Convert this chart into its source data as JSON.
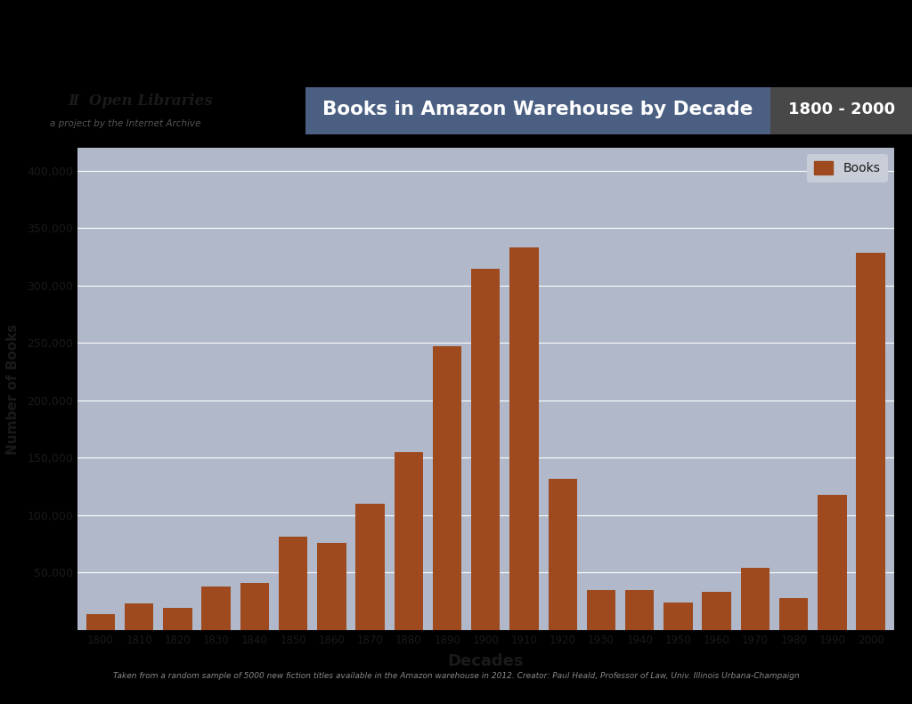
{
  "decades": [
    1800,
    1810,
    1820,
    1830,
    1840,
    1850,
    1860,
    1870,
    1880,
    1890,
    1900,
    1910,
    1920,
    1930,
    1940,
    1950,
    1960,
    1970,
    1980,
    1990,
    2000
  ],
  "values": [
    14000,
    23000,
    19000,
    38000,
    41000,
    81000,
    76000,
    110000,
    155000,
    247000,
    315000,
    333000,
    132000,
    35000,
    35000,
    24000,
    33000,
    54000,
    28000,
    118000,
    329000
  ],
  "bar_color": "#9E4A1E",
  "chart_bg_color": "#B0B8CA",
  "fig_bg_color": "#000000",
  "title_text": "Books in Amazon Warehouse by Decade",
  "title_bg_color": "#4A5F82",
  "title_text_color": "#FFFFFF",
  "date_range_text": "1800 - 2000",
  "date_range_bg_color": "#484848",
  "date_range_text_color": "#FFFFFF",
  "ylabel": "Number of Books",
  "xlabel": "Decades",
  "ylim": [
    0,
    420000
  ],
  "yticks": [
    0,
    50000,
    100000,
    150000,
    200000,
    250000,
    300000,
    350000,
    400000
  ],
  "legend_label": "Books",
  "footer_text": "Taken from a random sample of 5000 new fiction titles available in the Amazon warehouse in 2012. Creator: Paul Heald, Professor of Law, Univ. Illinois Urbana-Champaign",
  "logo_text": "Open Libraries",
  "logo_subtext": "a project by the Internet Archive",
  "grid_color": "#FFFFFF",
  "axis_text_color": "#1a1a1a",
  "bar_width": 0.75,
  "thin_line_color": "#4A5F82",
  "header_bg": "#000000",
  "logo_text_color": "#1a1a1a",
  "logo_subtext_color": "#555555"
}
